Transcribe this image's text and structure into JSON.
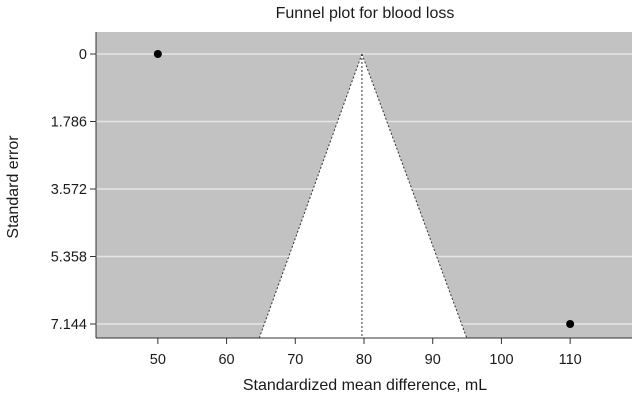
{
  "chart_data": {
    "type": "scatter",
    "title": "Funnel plot for blood loss",
    "xlabel": "Standardized mean difference, mL",
    "ylabel": "Standard error",
    "xlim": [
      41,
      119
    ],
    "ylim": [
      0,
      7.144
    ],
    "y_reversed": true,
    "xticks": [
      50,
      60,
      70,
      80,
      90,
      100,
      110
    ],
    "yticks": [
      0,
      1.786,
      3.572,
      5.358,
      7.144
    ],
    "ytick_labels": [
      "0",
      "1.786",
      "3.572",
      "5.358",
      "7.144"
    ],
    "points": [
      {
        "x": 50,
        "y": 0
      },
      {
        "x": 110,
        "y": 7.144
      }
    ],
    "pooled_estimate": 79.7,
    "funnel_bottom": [
      65.5,
      94.2
    ],
    "grid": true,
    "colors": {
      "panel": "#c2c2c2",
      "grid": "#e6e6e6",
      "funnel": "#ffffff",
      "point": "#000000",
      "reference_line": "#333333"
    }
  }
}
